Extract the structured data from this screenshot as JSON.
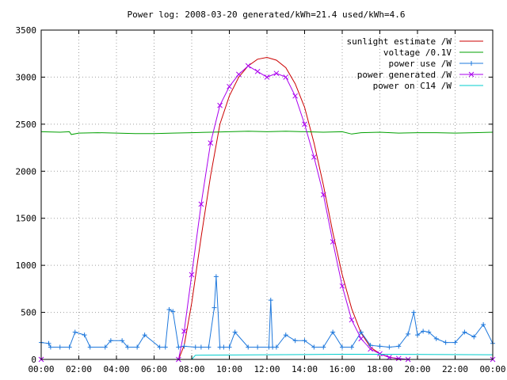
{
  "chart_data": {
    "type": "line",
    "title": "Power log: 2008-03-20 generated/kWh=21.4 used/kWh=4.6",
    "xlabel": "",
    "ylabel": "",
    "xlim": [
      0,
      24
    ],
    "ylim": [
      0,
      3500
    ],
    "grid": true,
    "legend_position": "top-right",
    "x_ticks": [
      {
        "v": 0,
        "label": "00:00"
      },
      {
        "v": 2,
        "label": "02:00"
      },
      {
        "v": 4,
        "label": "04:00"
      },
      {
        "v": 6,
        "label": "06:00"
      },
      {
        "v": 8,
        "label": "08:00"
      },
      {
        "v": 10,
        "label": "10:00"
      },
      {
        "v": 12,
        "label": "12:00"
      },
      {
        "v": 14,
        "label": "14:00"
      },
      {
        "v": 16,
        "label": "16:00"
      },
      {
        "v": 18,
        "label": "18:00"
      },
      {
        "v": 20,
        "label": "20:00"
      },
      {
        "v": 22,
        "label": "22:00"
      },
      {
        "v": 24,
        "label": "00:00"
      }
    ],
    "y_ticks": [
      {
        "v": 0,
        "label": "0"
      },
      {
        "v": 500,
        "label": "500"
      },
      {
        "v": 1000,
        "label": "1000"
      },
      {
        "v": 1500,
        "label": "1500"
      },
      {
        "v": 2000,
        "label": "2000"
      },
      {
        "v": 2500,
        "label": "2500"
      },
      {
        "v": 3000,
        "label": "3000"
      },
      {
        "v": 3500,
        "label": "3500"
      }
    ],
    "series": [
      {
        "name": "sunlight estimate /W",
        "color": "#cc0000",
        "style": "line",
        "x": [
          0,
          7.3,
          7.6,
          8.0,
          8.5,
          9.0,
          9.5,
          10.0,
          10.5,
          11.0,
          11.5,
          12.0,
          12.5,
          13.0,
          13.5,
          14.0,
          14.5,
          15.0,
          15.5,
          16.0,
          16.5,
          17.0,
          17.5,
          18.0,
          18.5,
          19.0,
          19.5,
          24
        ],
        "y": [
          0,
          0,
          150,
          600,
          1300,
          1950,
          2500,
          2800,
          3000,
          3120,
          3190,
          3210,
          3180,
          3100,
          2930,
          2680,
          2300,
          1850,
          1350,
          900,
          540,
          280,
          130,
          60,
          25,
          5,
          0,
          0
        ]
      },
      {
        "name": "voltage /0.1V",
        "color": "#00a000",
        "style": "line",
        "x": [
          0,
          1.0,
          1.5,
          1.6,
          2.0,
          3.0,
          4.0,
          5.0,
          6.0,
          7.0,
          8.0,
          9.0,
          10.0,
          11.0,
          12.0,
          13.0,
          14.0,
          15.0,
          16.0,
          16.5,
          17.0,
          18.0,
          19.0,
          20.0,
          21.0,
          22.0,
          23.0,
          24
        ],
        "y": [
          2420,
          2415,
          2420,
          2390,
          2405,
          2410,
          2405,
          2400,
          2400,
          2405,
          2410,
          2415,
          2420,
          2425,
          2420,
          2425,
          2420,
          2415,
          2420,
          2395,
          2410,
          2415,
          2405,
          2410,
          2410,
          2405,
          2410,
          2415
        ]
      },
      {
        "name": "power use /W",
        "color": "#1e78dc",
        "style": "linepoints",
        "x": [
          0,
          0.4,
          0.5,
          1.0,
          1.5,
          1.8,
          2.3,
          2.6,
          3.4,
          3.7,
          4.3,
          4.6,
          5.1,
          5.5,
          6.3,
          6.6,
          6.8,
          7.0,
          7.3,
          7.6,
          8.2,
          8.5,
          8.9,
          9.2,
          9.3,
          9.5,
          9.7,
          10.0,
          10.3,
          11.0,
          11.5,
          12.1,
          12.2,
          12.3,
          12.5,
          13.0,
          13.5,
          14.0,
          14.5,
          15.0,
          15.5,
          16.0,
          16.5,
          17.0,
          17.5,
          18.0,
          18.5,
          19.0,
          19.5,
          19.8,
          20.0,
          20.3,
          20.6,
          21.0,
          21.5,
          22.0,
          22.5,
          23.0,
          23.5,
          24
        ],
        "y": [
          180,
          170,
          130,
          130,
          130,
          290,
          260,
          130,
          130,
          200,
          200,
          130,
          130,
          260,
          130,
          130,
          530,
          510,
          130,
          140,
          130,
          130,
          130,
          550,
          880,
          130,
          130,
          130,
          290,
          130,
          130,
          130,
          630,
          130,
          130,
          260,
          200,
          200,
          130,
          130,
          290,
          130,
          130,
          290,
          150,
          140,
          130,
          140,
          270,
          500,
          260,
          300,
          290,
          220,
          180,
          180,
          290,
          240,
          370,
          170
        ]
      },
      {
        "name": "power generated /W",
        "color": "#aa00ee",
        "style": "linepoints",
        "x": [
          0,
          7.3,
          7.6,
          8.0,
          8.5,
          9.0,
          9.5,
          10.0,
          10.5,
          11.0,
          11.5,
          12.0,
          12.5,
          13.0,
          13.5,
          14.0,
          14.5,
          15.0,
          15.5,
          16.0,
          16.5,
          17.0,
          17.5,
          18.0,
          18.5,
          19.0,
          19.5,
          24
        ],
        "y": [
          0,
          0,
          300,
          900,
          1650,
          2300,
          2700,
          2900,
          3030,
          3120,
          3060,
          3000,
          3040,
          3000,
          2800,
          2500,
          2150,
          1750,
          1250,
          780,
          420,
          220,
          110,
          60,
          20,
          10,
          0,
          0
        ]
      },
      {
        "name": "power on C14 /W",
        "color": "#00cccc",
        "style": "line",
        "x": [
          0,
          8.0,
          8.2,
          12.0,
          16.0,
          18.0,
          24
        ],
        "y": [
          0,
          0,
          45,
          50,
          55,
          55,
          50
        ]
      }
    ]
  }
}
